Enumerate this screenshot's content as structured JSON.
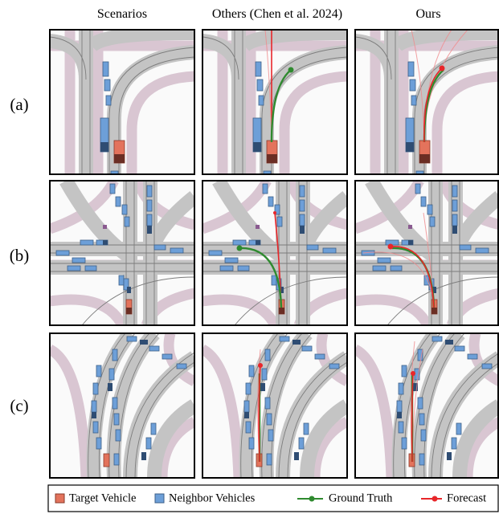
{
  "columns": [
    "Scenarios",
    "Others (Chen et al. 2024)",
    "Ours"
  ],
  "rows": [
    "(a)",
    "(b)",
    "(c)"
  ],
  "legend": [
    {
      "label": "Target Vehicle"
    },
    {
      "label": "Neighbor Vehicles"
    },
    {
      "label": "Ground Truth"
    },
    {
      "label": "Forecast"
    }
  ]
}
